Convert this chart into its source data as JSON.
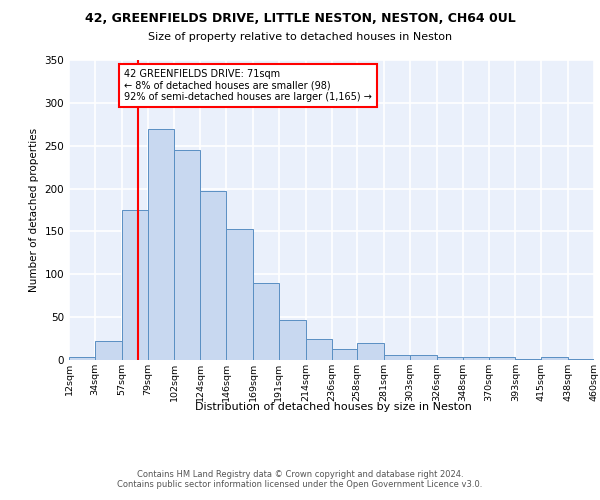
{
  "title1": "42, GREENFIELDS DRIVE, LITTLE NESTON, NESTON, CH64 0UL",
  "title2": "Size of property relative to detached houses in Neston",
  "xlabel": "Distribution of detached houses by size in Neston",
  "ylabel": "Number of detached properties",
  "bin_labels": [
    "12sqm",
    "34sqm",
    "57sqm",
    "79sqm",
    "102sqm",
    "124sqm",
    "146sqm",
    "169sqm",
    "191sqm",
    "214sqm",
    "236sqm",
    "258sqm",
    "281sqm",
    "303sqm",
    "326sqm",
    "348sqm",
    "370sqm",
    "393sqm",
    "415sqm",
    "438sqm",
    "460sqm"
  ],
  "bin_edges": [
    12,
    34,
    57,
    79,
    102,
    124,
    146,
    169,
    191,
    214,
    236,
    258,
    281,
    303,
    326,
    348,
    370,
    393,
    415,
    438,
    460
  ],
  "bar_heights": [
    3,
    22,
    175,
    270,
    245,
    197,
    153,
    90,
    47,
    25,
    13,
    20,
    6,
    6,
    3,
    3,
    4,
    1,
    3,
    1
  ],
  "bar_color": "#c8d8f0",
  "bar_edge_color": "#5a8fc3",
  "property_value": 71,
  "annotation_title": "42 GREENFIELDS DRIVE: 71sqm",
  "annotation_line1": "← 8% of detached houses are smaller (98)",
  "annotation_line2": "92% of semi-detached houses are larger (1,165) →",
  "vline_color": "red",
  "annotation_box_color": "white",
  "annotation_box_edge": "red",
  "ylim": [
    0,
    350
  ],
  "yticks": [
    0,
    50,
    100,
    150,
    200,
    250,
    300,
    350
  ],
  "background_color": "#eaf0fb",
  "grid_color": "white",
  "footnote": "Contains HM Land Registry data © Crown copyright and database right 2024.\nContains public sector information licensed under the Open Government Licence v3.0."
}
